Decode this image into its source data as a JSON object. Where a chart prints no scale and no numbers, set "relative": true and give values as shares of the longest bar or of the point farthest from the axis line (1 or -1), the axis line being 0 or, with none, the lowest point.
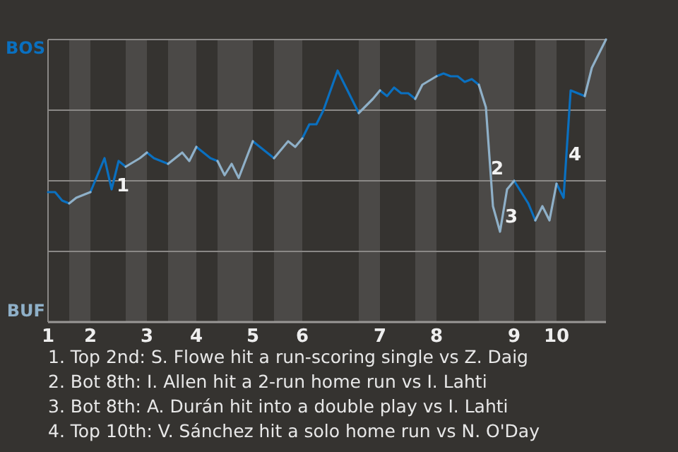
{
  "chart_data": {
    "type": "line",
    "relative": true,
    "categories": [
      "1",
      null,
      null,
      null,
      null,
      null,
      "2",
      null,
      null,
      null,
      null,
      null,
      null,
      null,
      "3",
      null,
      null,
      null,
      null,
      null,
      null,
      "4",
      null,
      null,
      null,
      null,
      null,
      null,
      null,
      "5",
      null,
      null,
      null,
      null,
      null,
      null,
      "6",
      null,
      null,
      null,
      null,
      null,
      null,
      null,
      null,
      null,
      null,
      "7",
      null,
      null,
      null,
      null,
      null,
      null,
      null,
      "8",
      null,
      null,
      null,
      null,
      null,
      null,
      null,
      null,
      null,
      null,
      "9",
      null,
      null,
      null,
      null,
      null,
      "10",
      null,
      null,
      null,
      null,
      null,
      null,
      null
    ],
    "series": [
      {
        "color": "#0a70c0",
        "values": [
          0.46,
          0.46,
          0.43,
          0.42,
          null,
          null,
          0.46,
          null,
          0.58,
          0.47,
          0.57,
          0.55,
          null,
          null,
          0.6,
          0.58,
          null,
          0.56,
          null,
          null,
          null,
          0.62,
          null,
          0.58,
          0.57,
          null,
          null,
          null,
          null,
          0.64,
          null,
          0.6,
          0.58,
          null,
          null,
          null,
          0.65,
          0.7,
          0.7,
          0.75,
          null,
          0.89,
          null,
          null,
          0.74,
          null,
          null,
          0.82,
          0.8,
          0.83,
          0.81,
          0.81,
          0.79,
          null,
          null,
          0.87,
          0.88,
          0.87,
          0.87,
          0.85,
          0.86,
          0.84,
          null,
          null,
          null,
          null,
          0.5,
          null,
          0.42,
          0.36,
          null,
          null,
          0.49,
          0.44,
          0.82,
          null,
          0.8,
          null,
          null,
          null
        ]
      },
      {
        "color": "#8fb0c8",
        "values": [
          null,
          null,
          null,
          0.42,
          0.44,
          null,
          0.46,
          null,
          null,
          null,
          null,
          0.55,
          null,
          0.58,
          0.6,
          null,
          null,
          0.56,
          null,
          0.6,
          0.57,
          0.62,
          null,
          null,
          0.57,
          0.52,
          0.56,
          0.51,
          null,
          0.64,
          null,
          null,
          0.58,
          null,
          0.64,
          0.62,
          0.65,
          null,
          null,
          null,
          null,
          null,
          null,
          null,
          0.74,
          null,
          0.79,
          0.82,
          null,
          null,
          null,
          null,
          0.79,
          0.84,
          null,
          0.87,
          null,
          null,
          null,
          null,
          null,
          0.84,
          0.76,
          0.41,
          0.32,
          0.47,
          0.5,
          null,
          null,
          0.36,
          0.41,
          0.36,
          0.49,
          null,
          null,
          null,
          0.8,
          0.9,
          null,
          1
        ]
      }
    ],
    "grid": "y",
    "line_style": "solid",
    "annotations": [
      "BOS",
      "BUF",
      "1",
      "2",
      "3",
      "4",
      "1. Top 2nd: S. Flowe hit a run-scoring single vs Z. Daig",
      "2. Bot 8th: I. Allen hit a 2-run home run vs I. Lahti",
      "3. Bot 8th: A. Durán hit into a double play vs I. Lahti",
      "4. Top 10th: V. Sánchez hit a solo home run vs N. O'Day"
    ]
  }
}
